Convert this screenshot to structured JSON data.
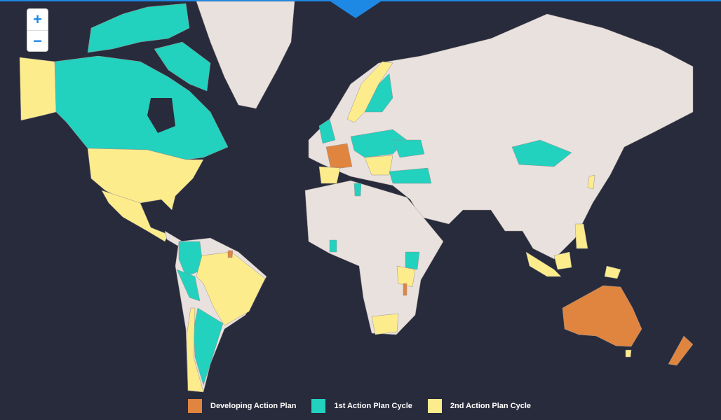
{
  "zoom_controls": {
    "zoom_in": "+",
    "zoom_out": "−"
  },
  "legend": [
    {
      "label": "Developing Action Plan",
      "color": "#e0853f"
    },
    {
      "label": "1st Action Plan Cycle",
      "color": "#22d1be"
    },
    {
      "label": "2nd Action Plan Cycle",
      "color": "#fdec8c"
    }
  ]
}
